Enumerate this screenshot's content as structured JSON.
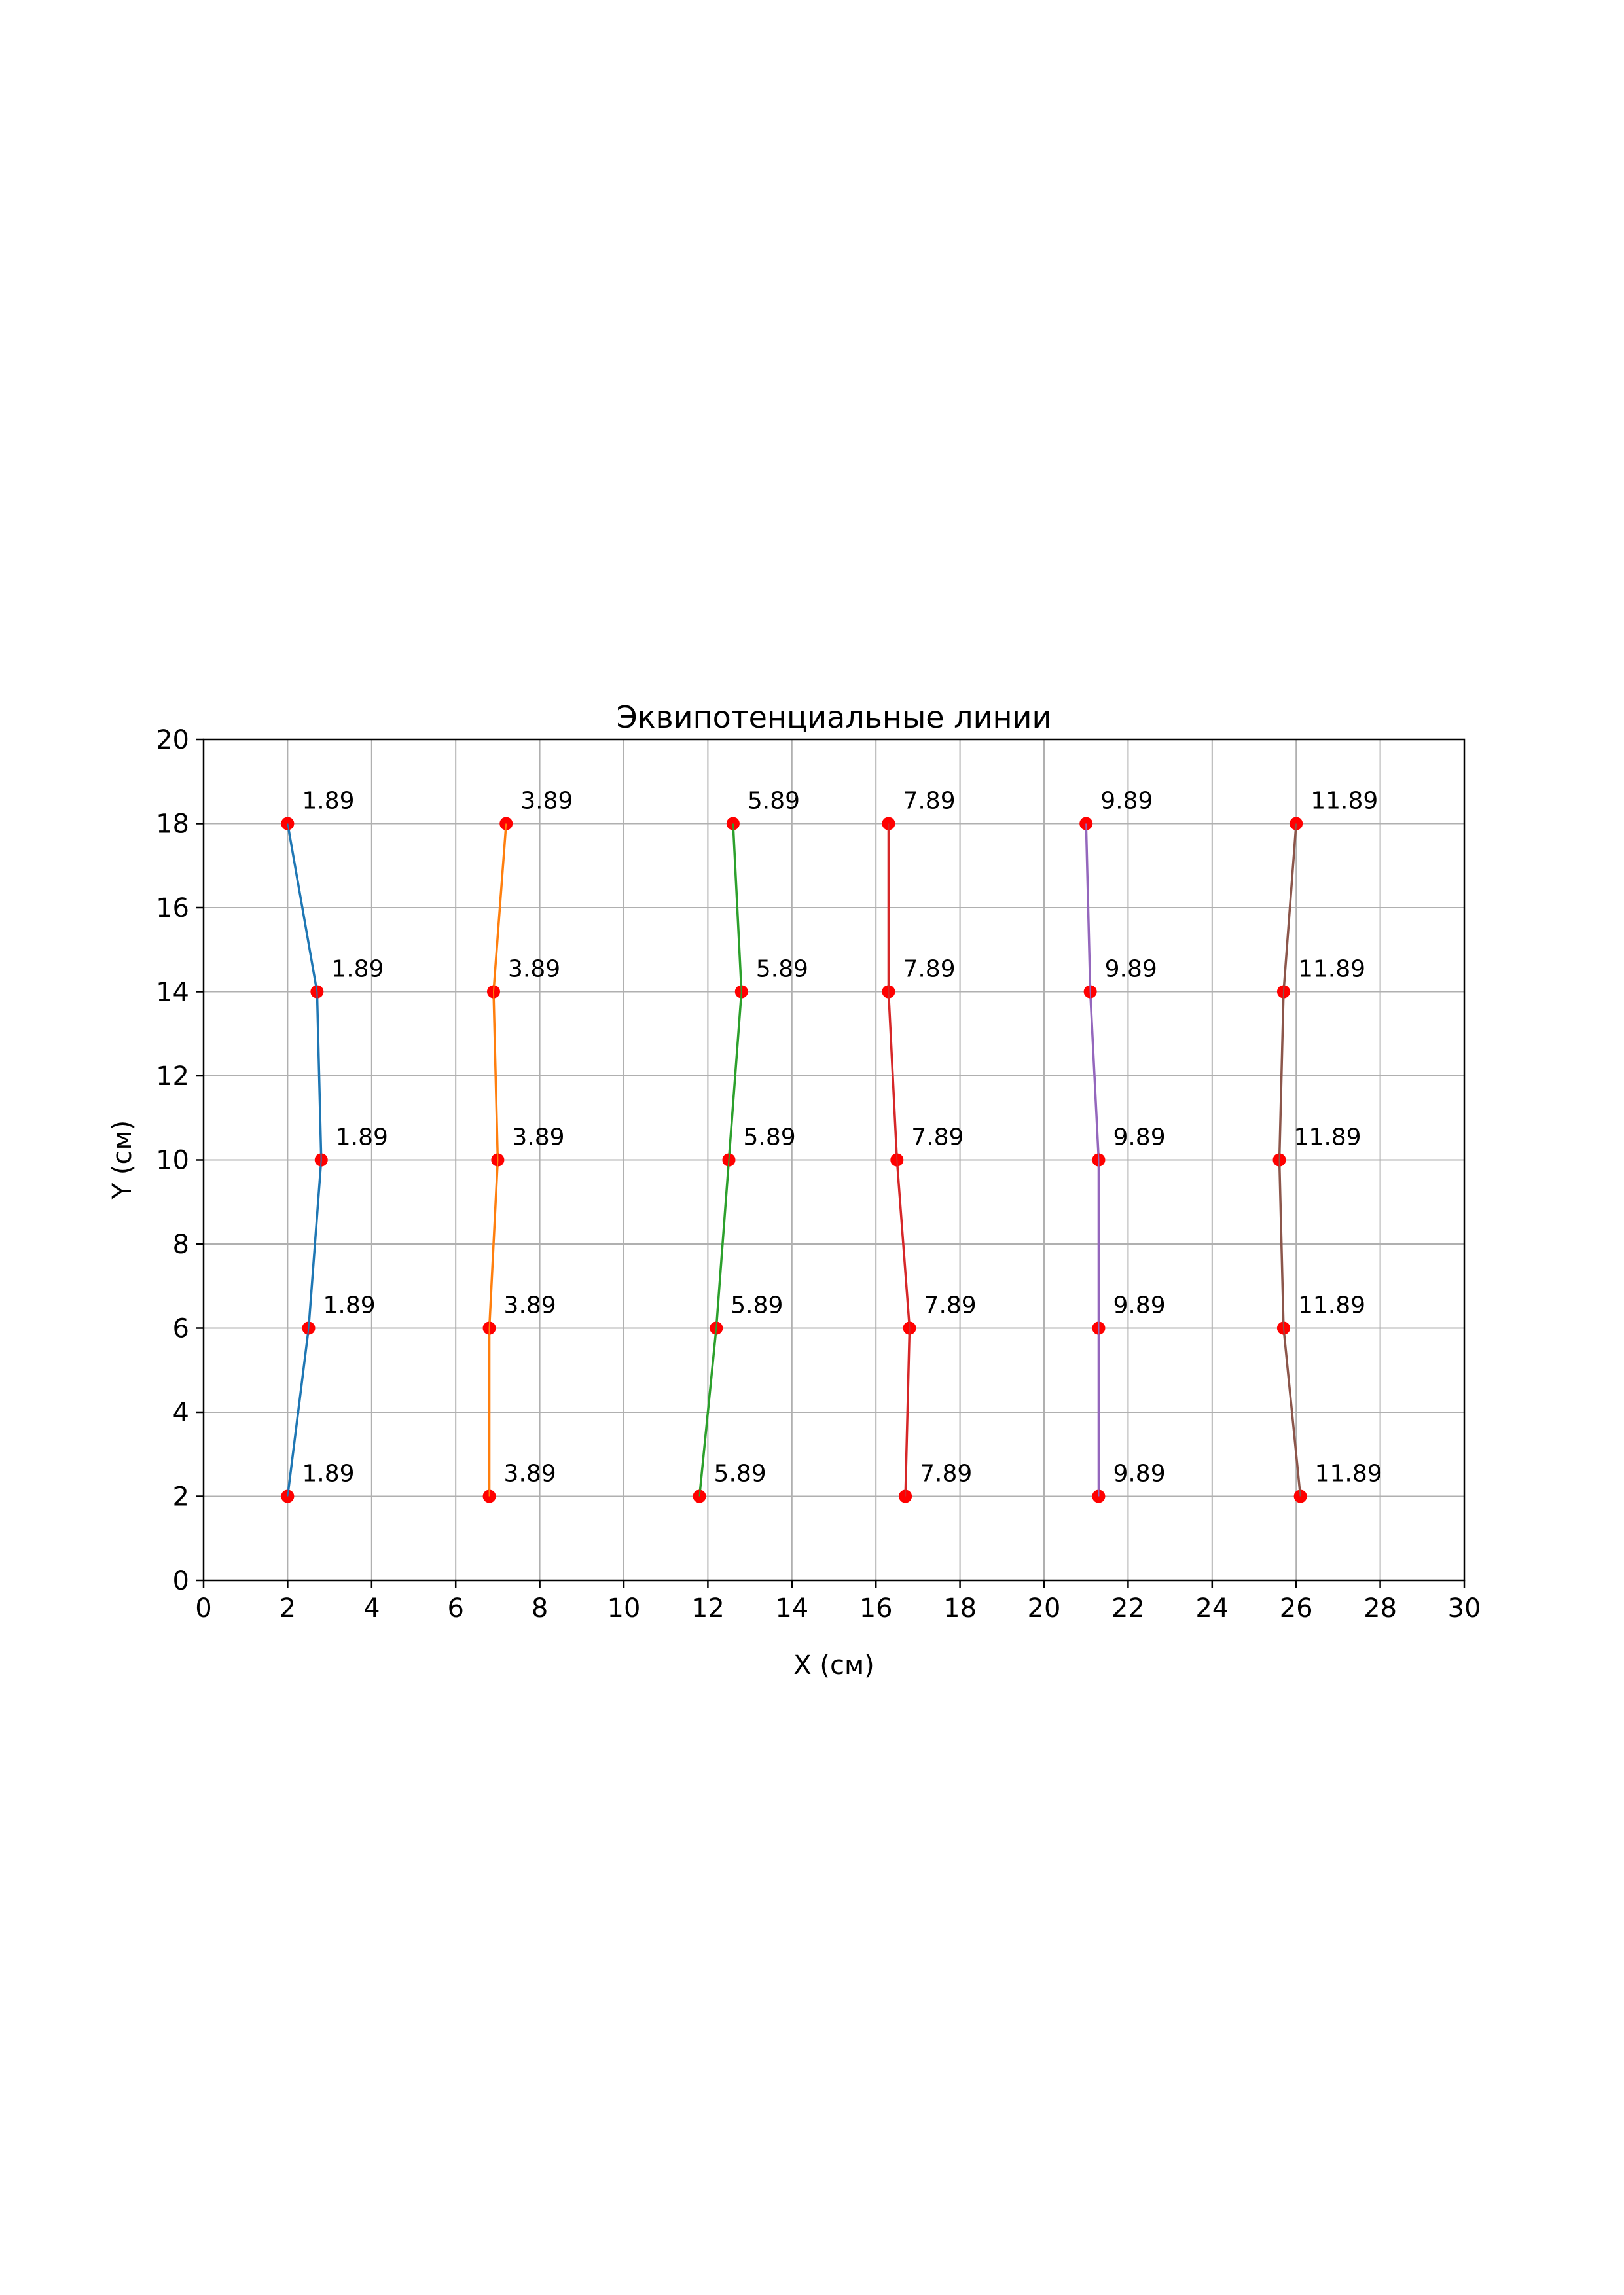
{
  "chart_data": {
    "type": "line",
    "title": "Эквипотенциальные линии",
    "xlabel": "X (см)",
    "ylabel": "Y (см)",
    "xlim": [
      0,
      30
    ],
    "ylim": [
      0,
      20
    ],
    "xticks": [
      0,
      2,
      4,
      6,
      8,
      10,
      12,
      14,
      16,
      18,
      20,
      22,
      24,
      26,
      28,
      30
    ],
    "yticks": [
      0,
      2,
      4,
      6,
      8,
      10,
      12,
      14,
      16,
      18,
      20
    ],
    "grid": true,
    "marker_color": "#ff0000",
    "series": [
      {
        "label": "1.89",
        "color": "#1f77b4",
        "points": [
          [
            2.0,
            18
          ],
          [
            2.7,
            14
          ],
          [
            2.8,
            10
          ],
          [
            2.5,
            6
          ],
          [
            2.0,
            2
          ]
        ]
      },
      {
        "label": "3.89",
        "color": "#ff7f0e",
        "points": [
          [
            7.2,
            18
          ],
          [
            6.9,
            14
          ],
          [
            7.0,
            10
          ],
          [
            6.8,
            6
          ],
          [
            6.8,
            2
          ]
        ]
      },
      {
        "label": "5.89",
        "color": "#2ca02c",
        "points": [
          [
            12.6,
            18
          ],
          [
            12.8,
            14
          ],
          [
            12.5,
            10
          ],
          [
            12.2,
            6
          ],
          [
            11.8,
            2
          ]
        ]
      },
      {
        "label": "7.89",
        "color": "#d62728",
        "points": [
          [
            16.3,
            18
          ],
          [
            16.3,
            14
          ],
          [
            16.5,
            10
          ],
          [
            16.8,
            6
          ],
          [
            16.7,
            2
          ]
        ]
      },
      {
        "label": "9.89",
        "color": "#9467bd",
        "points": [
          [
            21.0,
            18
          ],
          [
            21.1,
            14
          ],
          [
            21.3,
            10
          ],
          [
            21.3,
            6
          ],
          [
            21.3,
            2
          ]
        ]
      },
      {
        "label": "11.89",
        "color": "#8c564b",
        "points": [
          [
            26.0,
            18
          ],
          [
            25.7,
            14
          ],
          [
            25.6,
            10
          ],
          [
            25.7,
            6
          ],
          [
            26.1,
            2
          ]
        ]
      }
    ]
  }
}
